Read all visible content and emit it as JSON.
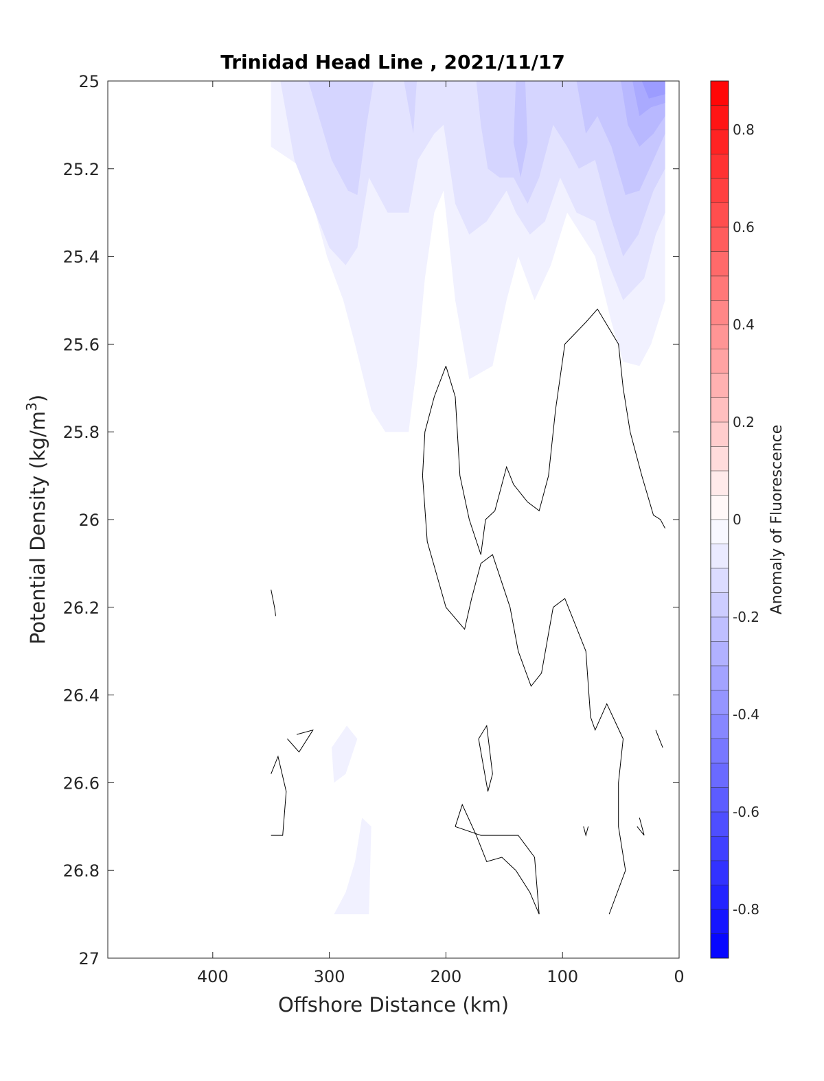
{
  "chart_data": {
    "type": "contour",
    "title": "Trinidad Head Line , 2021/11/17",
    "xlabel": "Offshore Distance (km)",
    "ylabel": "Potential Density (kg/m",
    "ylabel_sup": "3",
    "ylabel_end": ")",
    "xlim": [
      490,
      0
    ],
    "ylim": [
      25,
      27
    ],
    "x_reversed": true,
    "y_reversed": true,
    "x_ticks": [
      {
        "value": 400,
        "label": "400"
      },
      {
        "value": 300,
        "label": "300"
      },
      {
        "value": 200,
        "label": "200"
      },
      {
        "value": 100,
        "label": "100"
      },
      {
        "value": 0,
        "label": "0"
      }
    ],
    "y_ticks": [
      {
        "value": 25.0,
        "label": "25"
      },
      {
        "value": 25.2,
        "label": "25.2"
      },
      {
        "value": 25.4,
        "label": "25.4"
      },
      {
        "value": 25.6,
        "label": "25.6"
      },
      {
        "value": 25.8,
        "label": "25.8"
      },
      {
        "value": 26.0,
        "label": "26"
      },
      {
        "value": 26.2,
        "label": "26.2"
      },
      {
        "value": 26.4,
        "label": "26.4"
      },
      {
        "value": 26.6,
        "label": "26.6"
      },
      {
        "value": 26.8,
        "label": "26.8"
      },
      {
        "value": 27.0,
        "label": "27"
      }
    ],
    "colorbar": {
      "label": "Anomaly of Fluorescence",
      "range": [
        -0.9,
        0.9
      ],
      "step": 0.05,
      "ticks": [
        {
          "value": 0.8,
          "label": "0.8"
        },
        {
          "value": 0.6,
          "label": "0.6"
        },
        {
          "value": 0.4,
          "label": "0.4"
        },
        {
          "value": 0.2,
          "label": "0.2"
        },
        {
          "value": 0.0,
          "label": "0"
        },
        {
          "value": -0.2,
          "label": "-0.2"
        },
        {
          "value": -0.4,
          "label": "-0.4"
        },
        {
          "value": -0.6,
          "label": "-0.6"
        },
        {
          "value": -0.8,
          "label": "-0.8"
        }
      ],
      "low_color": "#0000ff",
      "mid_color": "#ffffff",
      "high_color": "#ff0000"
    },
    "filled_regions": [
      {
        "level": -0.05,
        "points": [
          [
            350,
            25.0
          ],
          [
            350,
            25.15
          ],
          [
            322,
            25.2
          ],
          [
            302,
            25.4
          ],
          [
            288,
            25.5
          ],
          [
            278,
            25.6
          ],
          [
            264,
            25.75
          ],
          [
            252,
            25.8
          ],
          [
            232,
            25.8
          ],
          [
            225,
            25.65
          ],
          [
            218,
            25.45
          ],
          [
            210,
            25.3
          ],
          [
            202,
            25.25
          ],
          [
            192,
            25.5
          ],
          [
            180,
            25.68
          ],
          [
            160,
            25.65
          ],
          [
            148,
            25.5
          ],
          [
            138,
            25.4
          ],
          [
            124,
            25.5
          ],
          [
            110,
            25.42
          ],
          [
            96,
            25.3
          ],
          [
            72,
            25.4
          ],
          [
            58,
            25.55
          ],
          [
            48,
            25.64
          ],
          [
            34,
            25.65
          ],
          [
            24,
            25.6
          ],
          [
            12,
            25.5
          ],
          [
            12,
            25.0
          ]
        ]
      },
      {
        "level": -0.1,
        "points": [
          [
            342,
            25.0
          ],
          [
            330,
            25.18
          ],
          [
            312,
            25.3
          ],
          [
            300,
            25.38
          ],
          [
            286,
            25.42
          ],
          [
            276,
            25.38
          ],
          [
            266,
            25.22
          ],
          [
            250,
            25.3
          ],
          [
            232,
            25.3
          ],
          [
            224,
            25.18
          ],
          [
            210,
            25.12
          ],
          [
            202,
            25.1
          ],
          [
            192,
            25.28
          ],
          [
            180,
            25.35
          ],
          [
            165,
            25.32
          ],
          [
            148,
            25.25
          ],
          [
            140,
            25.3
          ],
          [
            128,
            25.35
          ],
          [
            115,
            25.32
          ],
          [
            102,
            25.22
          ],
          [
            88,
            25.3
          ],
          [
            72,
            25.32
          ],
          [
            60,
            25.42
          ],
          [
            48,
            25.5
          ],
          [
            30,
            25.45
          ],
          [
            20,
            25.35
          ],
          [
            12,
            25.3
          ],
          [
            12,
            25.0
          ]
        ]
      },
      {
        "level": -0.15,
        "points": [
          [
            318,
            25.0
          ],
          [
            298,
            25.18
          ],
          [
            284,
            25.25
          ],
          [
            276,
            25.26
          ],
          [
            268,
            25.1
          ],
          [
            262,
            25.0
          ]
        ]
      },
      {
        "level": -0.15,
        "points": [
          [
            225,
            25.0
          ],
          [
            228,
            25.12
          ],
          [
            236,
            25.0
          ]
        ]
      },
      {
        "level": -0.15,
        "points": [
          [
            174,
            25.0
          ],
          [
            170,
            25.1
          ],
          [
            164,
            25.2
          ],
          [
            154,
            25.22
          ],
          [
            142,
            25.22
          ],
          [
            130,
            25.28
          ],
          [
            120,
            25.22
          ],
          [
            108,
            25.1
          ],
          [
            96,
            25.15
          ],
          [
            86,
            25.2
          ],
          [
            72,
            25.18
          ],
          [
            60,
            25.3
          ],
          [
            48,
            25.4
          ],
          [
            35,
            25.35
          ],
          [
            22,
            25.25
          ],
          [
            12,
            25.2
          ],
          [
            12,
            25.0
          ]
        ]
      },
      {
        "level": -0.2,
        "points": [
          [
            140,
            25.0
          ],
          [
            142,
            25.14
          ],
          [
            136,
            25.22
          ],
          [
            130,
            25.14
          ],
          [
            132,
            25.0
          ]
        ]
      },
      {
        "level": -0.2,
        "points": [
          [
            88,
            25.0
          ],
          [
            80,
            25.12
          ],
          [
            70,
            25.08
          ],
          [
            58,
            25.15
          ],
          [
            46,
            25.26
          ],
          [
            34,
            25.25
          ],
          [
            22,
            25.18
          ],
          [
            12,
            25.12
          ],
          [
            12,
            25.0
          ]
        ]
      },
      {
        "level": -0.25,
        "points": [
          [
            50,
            25.0
          ],
          [
            44,
            25.1
          ],
          [
            34,
            25.15
          ],
          [
            22,
            25.12
          ],
          [
            12,
            25.08
          ],
          [
            12,
            25.0
          ]
        ]
      },
      {
        "level": -0.3,
        "points": [
          [
            40,
            25.0
          ],
          [
            34,
            25.08
          ],
          [
            24,
            25.06
          ],
          [
            12,
            25.05
          ],
          [
            12,
            25.0
          ]
        ]
      },
      {
        "level": -0.35,
        "points": [
          [
            32,
            25.0
          ],
          [
            26,
            25.04
          ],
          [
            12,
            25.03
          ],
          [
            12,
            25.0
          ]
        ]
      },
      {
        "level": -0.05,
        "points": [
          [
            296,
            26.9
          ],
          [
            286,
            26.85
          ],
          [
            278,
            26.78
          ],
          [
            272,
            26.68
          ],
          [
            264,
            26.7
          ],
          [
            266,
            26.9
          ]
        ]
      },
      {
        "level": -0.05,
        "points": [
          [
            296,
            26.6
          ],
          [
            298,
            26.52
          ],
          [
            285,
            26.47
          ],
          [
            276,
            26.5
          ],
          [
            286,
            26.58
          ]
        ]
      }
    ],
    "zero_contours": [
      [
        [
          200,
          25.65
        ],
        [
          210,
          25.72
        ],
        [
          218,
          25.8
        ],
        [
          220,
          25.9
        ],
        [
          216,
          26.05
        ],
        [
          200,
          26.2
        ],
        [
          184,
          26.25
        ],
        [
          178,
          26.18
        ],
        [
          170,
          26.1
        ],
        [
          160,
          26.08
        ],
        [
          145,
          26.2
        ],
        [
          138,
          26.3
        ],
        [
          127,
          26.38
        ],
        [
          118,
          26.35
        ],
        [
          108,
          26.2
        ],
        [
          98,
          26.18
        ],
        [
          92,
          26.22
        ],
        [
          80,
          26.3
        ],
        [
          76,
          26.45
        ],
        [
          72,
          26.48
        ],
        [
          62,
          26.42
        ],
        [
          48,
          26.5
        ],
        [
          52,
          26.6
        ],
        [
          52,
          26.7
        ],
        [
          46,
          26.8
        ],
        [
          60,
          26.9
        ]
      ],
      [
        [
          200,
          25.65
        ],
        [
          192,
          25.72
        ],
        [
          188,
          25.9
        ],
        [
          180,
          26.0
        ],
        [
          170,
          26.08
        ],
        [
          166,
          26.0
        ],
        [
          158,
          25.98
        ],
        [
          148,
          25.88
        ],
        [
          142,
          25.92
        ],
        [
          130,
          25.96
        ],
        [
          120,
          25.98
        ],
        [
          112,
          25.9
        ],
        [
          106,
          25.75
        ],
        [
          98,
          25.6
        ],
        [
          80,
          25.55
        ],
        [
          70,
          25.52
        ],
        [
          52,
          25.6
        ],
        [
          48,
          25.7
        ],
        [
          42,
          25.8
        ],
        [
          32,
          25.9
        ],
        [
          22,
          25.99
        ],
        [
          16,
          26.0
        ],
        [
          12,
          26.02
        ]
      ],
      [
        [
          350,
          26.16
        ],
        [
          347,
          26.2
        ],
        [
          346,
          26.22
        ]
      ],
      [
        [
          336,
          26.5
        ],
        [
          326,
          26.53
        ],
        [
          314,
          26.48
        ],
        [
          328,
          26.49
        ]
      ],
      [
        [
          350,
          26.58
        ],
        [
          344,
          26.54
        ],
        [
          337,
          26.62
        ],
        [
          340,
          26.72
        ],
        [
          350,
          26.72
        ]
      ],
      [
        [
          172,
          26.5
        ],
        [
          165,
          26.47
        ],
        [
          160,
          26.58
        ],
        [
          164,
          26.62
        ],
        [
          172,
          26.5
        ]
      ],
      [
        [
          192,
          26.7
        ],
        [
          186,
          26.65
        ],
        [
          174,
          26.72
        ],
        [
          165,
          26.78
        ],
        [
          152,
          26.77
        ],
        [
          140,
          26.8
        ],
        [
          128,
          26.85
        ],
        [
          120,
          26.9
        ],
        [
          124,
          26.77
        ],
        [
          138,
          26.72
        ],
        [
          158,
          26.72
        ],
        [
          170,
          26.72
        ],
        [
          192,
          26.7
        ]
      ],
      [
        [
          82,
          26.7
        ],
        [
          80,
          26.72
        ],
        [
          78,
          26.7
        ]
      ],
      [
        [
          36,
          26.7
        ],
        [
          30,
          26.72
        ],
        [
          34,
          26.68
        ]
      ],
      [
        [
          20,
          26.48
        ],
        [
          14,
          26.52
        ]
      ]
    ]
  }
}
